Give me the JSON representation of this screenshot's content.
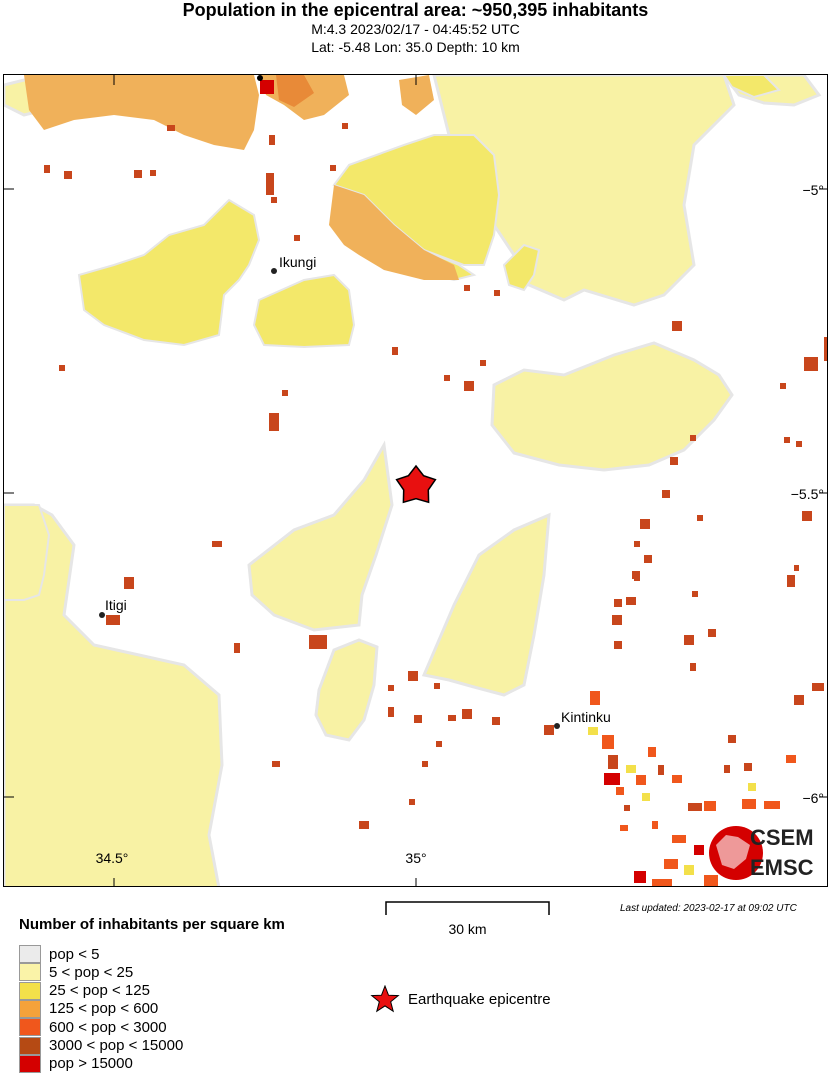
{
  "header": {
    "title": "Population in the epicentral area: ~950,395 inhabitants",
    "line1": "M:4.3 2023/02/17 - 04:45:52 UTC",
    "line2": "Lat: -5.48 Lon: 35.0 Depth: 10 km"
  },
  "map": {
    "cities": [
      {
        "name": "Ikungi"
      },
      {
        "name": "Itigi"
      },
      {
        "name": "Kintinku"
      }
    ],
    "lat_ticks": [
      "−5°",
      "−5.5°",
      "−6°"
    ],
    "lon_ticks": [
      "34.5°",
      "35°"
    ],
    "epicentre": {
      "lat": -5.48,
      "lon": 35.0
    },
    "logo": {
      "line1": "CSEM",
      "line2": "EMSC"
    }
  },
  "footer": {
    "last_updated": "Last updated: 2023-02-17 at 09:02 UTC",
    "scale_label": "30 km",
    "epicentre_label": "Earthquake epicentre"
  },
  "legend": {
    "title": "Number of inhabitants per square km",
    "items": [
      {
        "label": "pop < 5",
        "color": "#ebebeb"
      },
      {
        "label": "5 < pop < 25",
        "color": "#faf3a8"
      },
      {
        "label": "25 < pop < 125",
        "color": "#f3e04a"
      },
      {
        "label": "125 < pop < 600",
        "color": "#f5a23a"
      },
      {
        "label": "600 < pop < 3000",
        "color": "#f0571c"
      },
      {
        "label": "3000 < pop < 15000",
        "color": "#b54a14"
      },
      {
        "label": "pop > 15000",
        "color": "#d40000"
      }
    ]
  },
  "colors": {
    "pale_yellow": "#f8f2a4",
    "yellow": "#f3e86a",
    "orange": "#f0b15a",
    "dark_orange": "#e88a38",
    "red_orange": "#c8461c",
    "epicentre": "#e81010"
  }
}
